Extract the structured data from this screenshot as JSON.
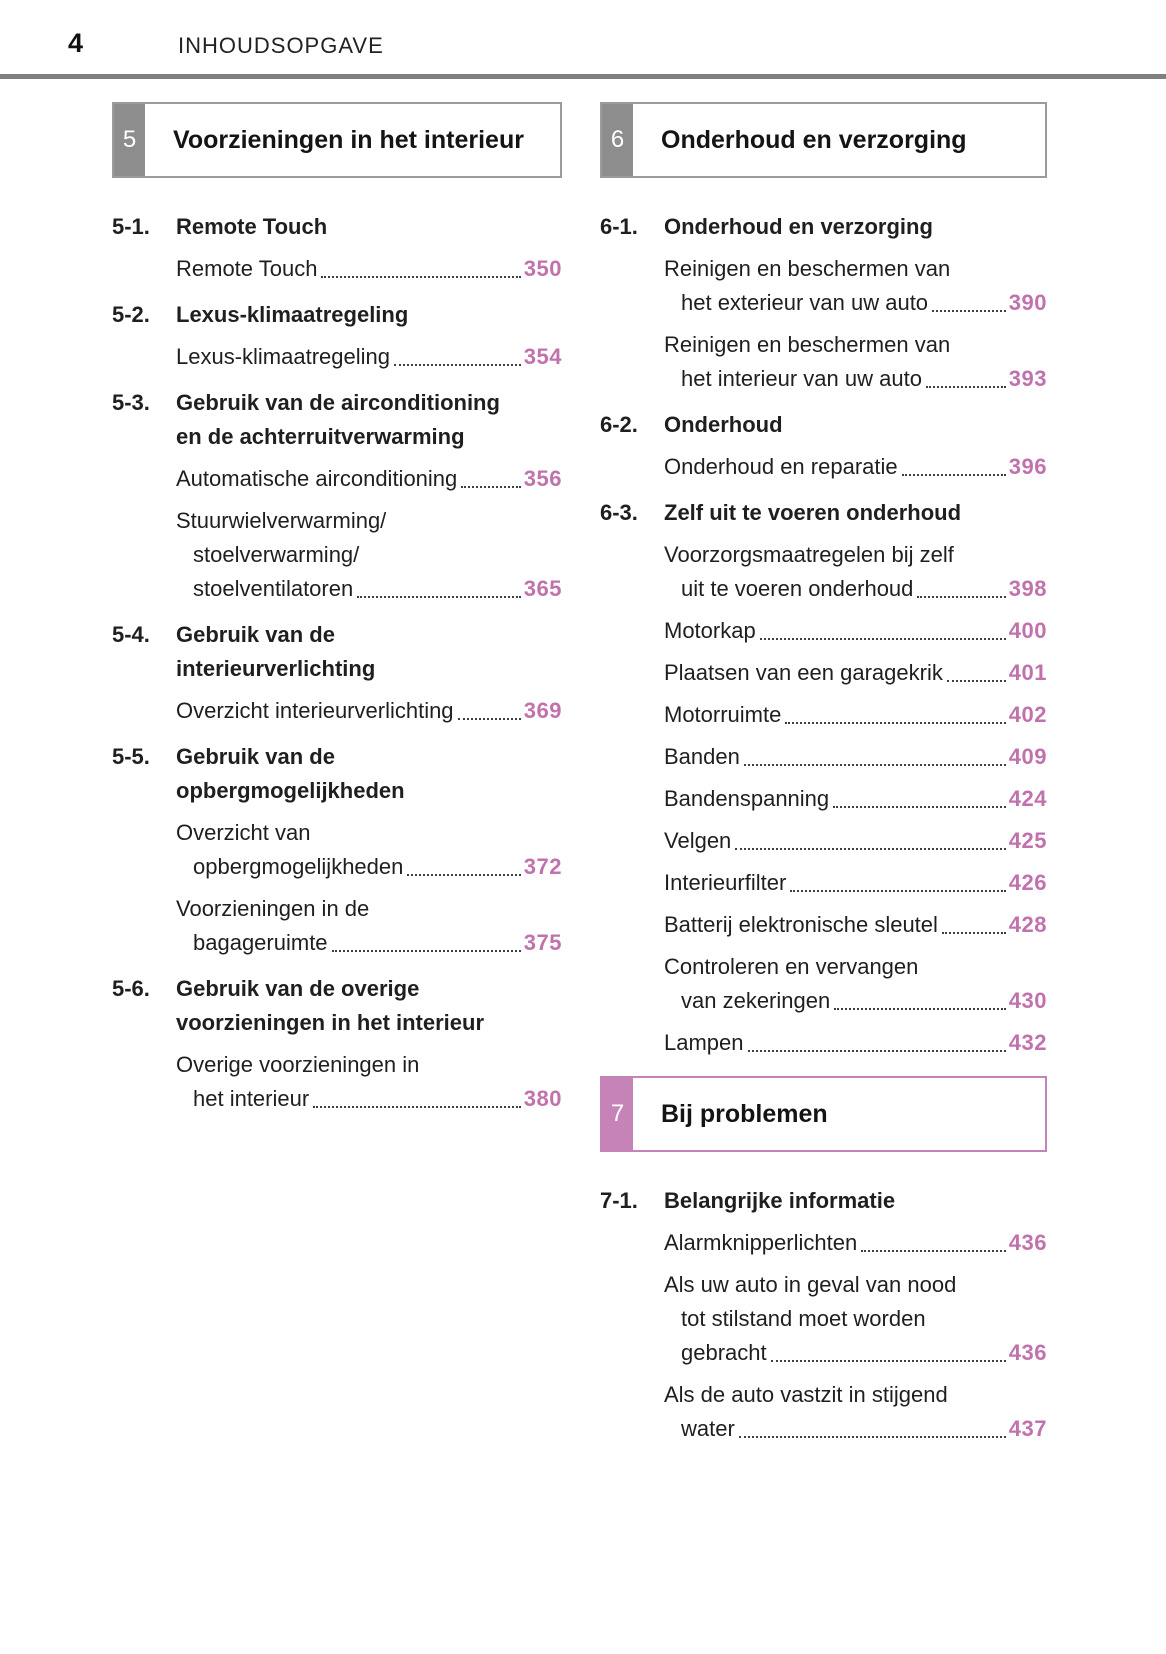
{
  "page": {
    "number": "4",
    "title": "INHOUDSOPGAVE"
  },
  "colors": {
    "accent_pink": "#c172ad",
    "tab_pink": "#c583b7",
    "pink_border": "#c583b7",
    "tab_gray": "#8d8d8d",
    "gray_border": "#9b9b9b",
    "rule_gray": "#7f7f7f"
  },
  "columns": [
    {
      "name": "left",
      "blocks": [
        {
          "type": "section",
          "num": "5",
          "title": "Voorzieningen in het interieur",
          "accent": "gray"
        },
        {
          "type": "item",
          "label": "5-1.",
          "heading": [
            "Remote Touch"
          ],
          "entries": [
            {
              "lines": [
                "Remote Touch"
              ],
              "page": "350"
            }
          ]
        },
        {
          "type": "item",
          "label": "5-2.",
          "heading": [
            "Lexus-klimaatregeling"
          ],
          "entries": [
            {
              "lines": [
                "Lexus-klimaatregeling"
              ],
              "page": "354"
            }
          ]
        },
        {
          "type": "item",
          "label": "5-3.",
          "heading": [
            "Gebruik van de airconditioning",
            "en de achterruitverwarming"
          ],
          "entries": [
            {
              "lines": [
                "Automatische airconditioning"
              ],
              "page": "356"
            },
            {
              "lines": [
                "Stuurwielverwarming/",
                "stoelverwarming/",
                "stoelventilatoren"
              ],
              "page": "365"
            }
          ]
        },
        {
          "type": "item",
          "label": "5-4.",
          "heading": [
            "Gebruik van de",
            "interieurverlichting"
          ],
          "entries": [
            {
              "lines": [
                "Overzicht interieurverlichting"
              ],
              "page": "369"
            }
          ]
        },
        {
          "type": "item",
          "label": "5-5.",
          "heading": [
            "Gebruik van de",
            "opbergmogelijkheden"
          ],
          "entries": [
            {
              "lines": [
                "Overzicht van",
                "opbergmogelijkheden"
              ],
              "page": "372"
            },
            {
              "lines": [
                "Voorzieningen in de",
                "bagageruimte"
              ],
              "page": "375"
            }
          ]
        },
        {
          "type": "item",
          "label": "5-6.",
          "heading": [
            "Gebruik van de overige",
            "voorzieningen in het interieur"
          ],
          "entries": [
            {
              "lines": [
                "Overige voorzieningen in",
                "het interieur"
              ],
              "page": "380"
            }
          ]
        }
      ]
    },
    {
      "name": "right",
      "blocks": [
        {
          "type": "section",
          "num": "6",
          "title": "Onderhoud en verzorging",
          "accent": "gray"
        },
        {
          "type": "item",
          "label": "6-1.",
          "heading": [
            "Onderhoud en verzorging"
          ],
          "entries": [
            {
              "lines": [
                "Reinigen en beschermen van",
                "het exterieur van uw auto"
              ],
              "page": "390"
            },
            {
              "lines": [
                "Reinigen en beschermen van",
                "het interieur van uw auto"
              ],
              "page": "393"
            }
          ]
        },
        {
          "type": "item",
          "label": "6-2.",
          "heading": [
            "Onderhoud"
          ],
          "entries": [
            {
              "lines": [
                "Onderhoud en reparatie"
              ],
              "page": "396"
            }
          ]
        },
        {
          "type": "item",
          "label": "6-3.",
          "heading": [
            "Zelf uit te voeren onderhoud"
          ],
          "entries": [
            {
              "lines": [
                "Voorzorgsmaatregelen bij zelf",
                "uit te voeren onderhoud"
              ],
              "page": "398"
            },
            {
              "lines": [
                "Motorkap"
              ],
              "page": "400"
            },
            {
              "lines": [
                "Plaatsen van een garagekrik"
              ],
              "page": "401"
            },
            {
              "lines": [
                "Motorruimte"
              ],
              "page": "402"
            },
            {
              "lines": [
                "Banden"
              ],
              "page": "409"
            },
            {
              "lines": [
                "Bandenspanning"
              ],
              "page": "424"
            },
            {
              "lines": [
                "Velgen"
              ],
              "page": "425"
            },
            {
              "lines": [
                "Interieurfilter"
              ],
              "page": "426"
            },
            {
              "lines": [
                "Batterij elektronische sleutel"
              ],
              "page": "428"
            },
            {
              "lines": [
                "Controleren en vervangen",
                "van zekeringen"
              ],
              "page": "430"
            },
            {
              "lines": [
                "Lampen"
              ],
              "page": "432"
            }
          ]
        },
        {
          "type": "section",
          "num": "7",
          "title": "Bij problemen",
          "accent": "pink",
          "mid": true
        },
        {
          "type": "item",
          "label": "7-1.",
          "heading": [
            "Belangrijke informatie"
          ],
          "entries": [
            {
              "lines": [
                "Alarmknipperlichten"
              ],
              "page": "436"
            },
            {
              "lines": [
                "Als uw auto in geval van nood",
                "tot stilstand moet worden",
                "gebracht"
              ],
              "page": "436"
            },
            {
              "lines": [
                "Als de auto vastzit in stijgend",
                "water"
              ],
              "page": "437"
            }
          ]
        }
      ]
    }
  ]
}
